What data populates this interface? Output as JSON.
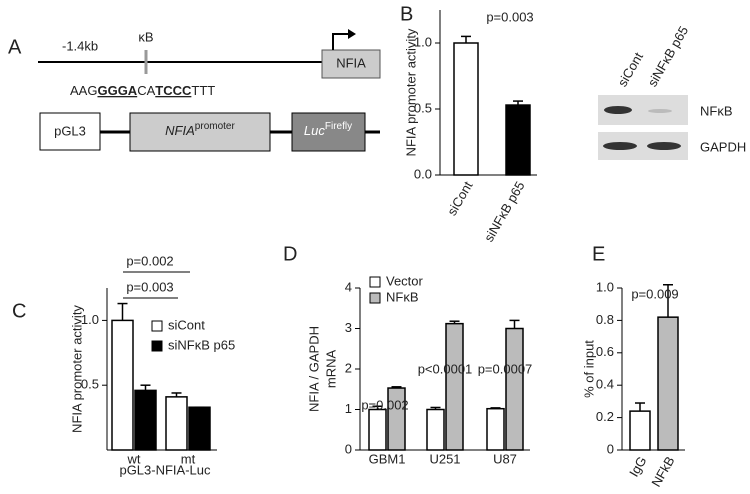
{
  "panel_a": {
    "label": "A",
    "position": "-1.4kb",
    "site": "κB",
    "gene": "NFIA",
    "sequence": [
      "AAG",
      "GGGA",
      "CA",
      "TCCC",
      "TTT"
    ],
    "construct": {
      "vector": "pGL3",
      "promoter": "NFIA",
      "promoter_sup": "promoter",
      "reporter": "Luc",
      "reporter_sup": "Firefly"
    }
  },
  "blot": {
    "lanes": [
      "siCont",
      "siNFκB p65"
    ],
    "rows": [
      "NFκB",
      "GAPDH"
    ]
  },
  "chart_data": [
    {
      "type": "bar",
      "panel": "B",
      "ylabel": "NFIA promoter activity",
      "categories": [
        "siCont",
        "siNFκB p65"
      ],
      "values": [
        1.0,
        0.53
      ],
      "errors": [
        0.05,
        0.03
      ],
      "colors": [
        "#ffffff",
        "#000000"
      ],
      "ylim": [
        0,
        1.25
      ],
      "yticks": [
        {
          "value": 0,
          "label": "0.0"
        },
        0.5,
        {
          "value": 1,
          "label": "1.0"
        }
      ],
      "annotations": [
        "p=0.003"
      ]
    },
    {
      "type": "bar",
      "panel": "C",
      "ylabel": "NFIA promoter activity",
      "xlabel": "pGL3-NFIA-Luc",
      "categories": [
        "wt",
        "mt"
      ],
      "series": [
        {
          "name": "siCont",
          "color": "#ffffff",
          "values": [
            1.0,
            0.41
          ],
          "errors": [
            0.13,
            0.03
          ]
        },
        {
          "name": "siNFκB p65",
          "color": "#000000",
          "values": [
            0.46,
            0.33
          ],
          "errors": [
            0.04,
            0.0
          ]
        }
      ],
      "ylim": [
        0,
        1.25
      ],
      "yticks": [
        0.5,
        {
          "value": 1,
          "label": "1.0"
        }
      ],
      "annotations": [
        "p=0.003",
        "p=0.002"
      ],
      "legend": true
    },
    {
      "type": "bar",
      "panel": "D",
      "ylabel": [
        "NFIA / GAPDH",
        "mRNA"
      ],
      "categories": [
        "GBM1",
        "U251",
        "U87"
      ],
      "series": [
        {
          "name": "Vector",
          "color": "#ffffff",
          "values": [
            1.0,
            1.0,
            1.02
          ],
          "errors": [
            0.08,
            0.05,
            0.02
          ]
        },
        {
          "name": "NFκB",
          "color": "#bbbbbb",
          "values": [
            1.53,
            3.12,
            3.0
          ],
          "errors": [
            0.03,
            0.06,
            0.2
          ]
        }
      ],
      "ylim": [
        0,
        4
      ],
      "yticks": [
        0,
        1,
        2,
        3,
        4
      ],
      "annotations": [
        "p=0.002",
        "p<0.0001",
        "p=0.0007"
      ],
      "legend": true
    },
    {
      "type": "bar",
      "panel": "E",
      "ylabel": "% of input",
      "categories": [
        "IgG",
        "NFkB"
      ],
      "values": [
        0.24,
        0.82
      ],
      "errors": [
        0.05,
        0.2
      ],
      "colors": [
        "#ffffff",
        "#bbbbbb"
      ],
      "ylim": [
        0,
        1.0
      ],
      "yticks": [
        0,
        0.2,
        0.4,
        0.6,
        0.8,
        {
          "value": 1,
          "label": "1.0"
        }
      ],
      "annotations": [
        "p=0.009"
      ]
    }
  ]
}
